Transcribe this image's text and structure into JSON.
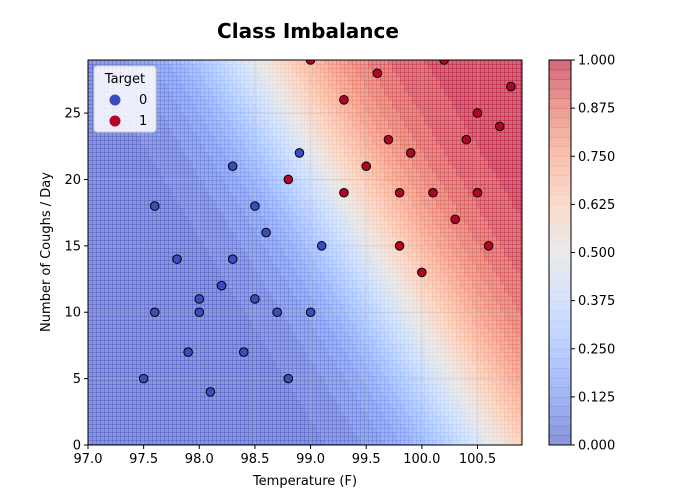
{
  "chart_data": {
    "type": "scatter",
    "title": "Class Imbalance",
    "xlabel": "Temperature (F)",
    "ylabel": "Number of Coughs / Day",
    "xlim": [
      97.0,
      100.9
    ],
    "ylim": [
      0,
      29
    ],
    "xticks": [
      "97.0",
      "97.5",
      "98.0",
      "98.5",
      "99.0",
      "99.5",
      "100.0",
      "100.5"
    ],
    "yticks": [
      "0",
      "5",
      "10",
      "15",
      "20",
      "25"
    ],
    "xtick_values": [
      97.0,
      97.5,
      98.0,
      98.5,
      99.0,
      99.5,
      100.0,
      100.5
    ],
    "ytick_values": [
      0,
      5,
      10,
      15,
      20,
      25
    ],
    "grid": true,
    "legend": {
      "title": "Target",
      "placement": "top-left",
      "entries": [
        "0",
        "1"
      ]
    },
    "colorbar": {
      "range": [
        0.0,
        1.0
      ],
      "ticks": [
        "0.000",
        "0.125",
        "0.250",
        "0.375",
        "0.500",
        "0.625",
        "0.750",
        "0.875",
        "1.000"
      ],
      "tick_values": [
        0.0,
        0.125,
        0.25,
        0.375,
        0.5,
        0.625,
        0.75,
        0.875,
        1.0
      ],
      "colormap": "coolwarm"
    },
    "background": {
      "type": "filled-contour",
      "description_value": "predicted probability of class 1",
      "low_color": "#3b4cc0",
      "mid_color": "#dddddd",
      "high_color": "#b40426"
    },
    "series": [
      {
        "name": "0",
        "color": "#3b4cc0",
        "points": [
          [
            97.5,
            5
          ],
          [
            97.6,
            18
          ],
          [
            97.6,
            10
          ],
          [
            97.8,
            14
          ],
          [
            97.9,
            7
          ],
          [
            98.0,
            11
          ],
          [
            98.0,
            10
          ],
          [
            98.1,
            4
          ],
          [
            98.2,
            12
          ],
          [
            98.3,
            21
          ],
          [
            98.3,
            14
          ],
          [
            98.4,
            7
          ],
          [
            98.5,
            18
          ],
          [
            98.5,
            11
          ],
          [
            98.6,
            16
          ],
          [
            98.7,
            10
          ],
          [
            98.8,
            5
          ],
          [
            98.9,
            22
          ],
          [
            99.0,
            10
          ],
          [
            99.1,
            15
          ]
        ]
      },
      {
        "name": "1",
        "color": "#b40426",
        "points": [
          [
            98.8,
            20
          ],
          [
            99.0,
            29
          ],
          [
            99.3,
            26
          ],
          [
            99.3,
            19
          ],
          [
            99.5,
            21
          ],
          [
            99.6,
            28
          ],
          [
            99.7,
            23
          ],
          [
            99.8,
            19
          ],
          [
            99.8,
            15
          ],
          [
            99.9,
            22
          ],
          [
            100.0,
            13
          ],
          [
            100.1,
            19
          ],
          [
            100.2,
            29
          ],
          [
            100.3,
            17
          ],
          [
            100.4,
            23
          ],
          [
            100.5,
            25
          ],
          [
            100.5,
            19
          ],
          [
            100.6,
            15
          ],
          [
            100.7,
            24
          ],
          [
            100.8,
            27
          ]
        ]
      }
    ]
  }
}
